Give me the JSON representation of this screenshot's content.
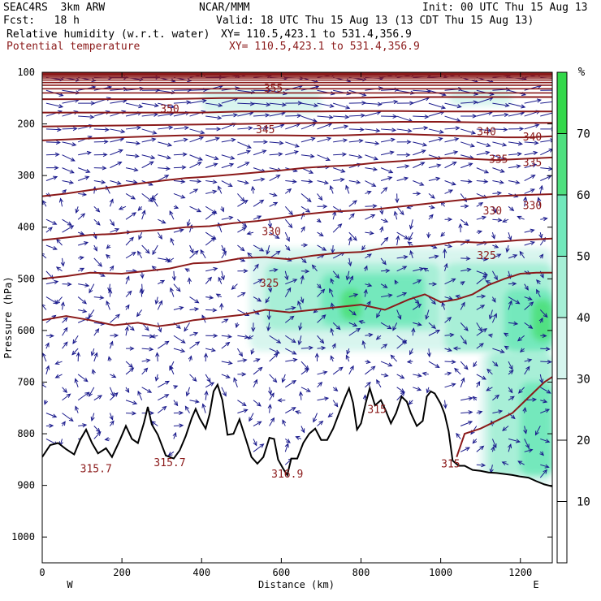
{
  "header": {
    "model": "SEAC4RS  3km ARW",
    "forecast": "Fcst:   18 h",
    "org": "NCAR/MMM",
    "init": "Init: 00 UTC Thu 15 Aug 13",
    "valid": "Valid: 18 UTC Thu 15 Aug 13 (13 CDT Thu 15 Aug 13)",
    "field1_name": "Relative humidity (w.r.t. water)",
    "field1_xy": "XY= 110.5,423.1 to 531.4,356.9",
    "field2_name": "Potential temperature",
    "field2_xy": "XY= 110.5,423.1 to 531.4,356.9"
  },
  "colors": {
    "theta": "#8b1a1a",
    "wind": "#1a1a8c",
    "terrain": "#000000",
    "rh_levels": [
      "#ffffff",
      "#ffffff",
      "#ffffff",
      "#d6f5ee",
      "#a6efd6",
      "#72e8bb",
      "#4fe07f",
      "#33d84a"
    ]
  },
  "chart_data": {
    "type": "cross-section",
    "xlabel": "Distance (km)",
    "ylabel": "Pressure (hPa)",
    "xlim": [
      0,
      1280
    ],
    "ylim": [
      1050,
      100
    ],
    "x_ticks": [
      0,
      200,
      400,
      600,
      800,
      1000,
      1200
    ],
    "y_ticks": [
      100,
      200,
      300,
      400,
      500,
      600,
      700,
      800,
      900,
      1000
    ],
    "x_end_labels": {
      "left": "W",
      "right": "E"
    },
    "colorbar": {
      "unit": "%",
      "ticks": [
        10,
        20,
        30,
        40,
        50,
        60,
        70
      ],
      "range": [
        0,
        80
      ]
    },
    "theta_contours": [
      {
        "value": 315,
        "label": "315"
      },
      {
        "value": 320,
        "label": ""
      },
      {
        "value": 325,
        "label": "325"
      },
      {
        "value": 330,
        "label": "330"
      },
      {
        "value": 335,
        "label": "335"
      },
      {
        "value": 340,
        "label": "340"
      },
      {
        "value": 345,
        "label": "345"
      },
      {
        "value": 350,
        "label": "350"
      },
      {
        "value": 355,
        "label": "355"
      }
    ],
    "contour_labels": [
      {
        "text": "350",
        "x": 320,
        "p": 178
      },
      {
        "text": "355",
        "x": 580,
        "p": 138
      },
      {
        "text": "345",
        "x": 560,
        "p": 218
      },
      {
        "text": "340",
        "x": 1115,
        "p": 222
      },
      {
        "text": "340",
        "x": 1230,
        "p": 232
      },
      {
        "text": "335",
        "x": 1145,
        "p": 275
      },
      {
        "text": "335",
        "x": 1230,
        "p": 282
      },
      {
        "text": "330",
        "x": 1130,
        "p": 375
      },
      {
        "text": "330",
        "x": 1230,
        "p": 365
      },
      {
        "text": "330",
        "x": 575,
        "p": 415
      },
      {
        "text": "325",
        "x": 1115,
        "p": 462
      },
      {
        "text": "325",
        "x": 570,
        "p": 515
      },
      {
        "text": "315",
        "x": 840,
        "p": 760
      },
      {
        "text": "315",
        "x": 1025,
        "p": 865
      },
      {
        "text": "315.7",
        "x": 135,
        "p": 875
      },
      {
        "text": "315.7",
        "x": 320,
        "p": 863
      },
      {
        "text": "316.9",
        "x": 615,
        "p": 885
      }
    ],
    "terrain_surface_hpa": [
      [
        0,
        845
      ],
      [
        20,
        822
      ],
      [
        40,
        818
      ],
      [
        60,
        830
      ],
      [
        80,
        840
      ],
      [
        95,
        812
      ],
      [
        110,
        792
      ],
      [
        125,
        818
      ],
      [
        140,
        838
      ],
      [
        160,
        828
      ],
      [
        175,
        845
      ],
      [
        195,
        812
      ],
      [
        210,
        785
      ],
      [
        225,
        810
      ],
      [
        240,
        818
      ],
      [
        255,
        780
      ],
      [
        265,
        748
      ],
      [
        275,
        782
      ],
      [
        290,
        802
      ],
      [
        310,
        842
      ],
      [
        330,
        848
      ],
      [
        345,
        832
      ],
      [
        360,
        805
      ],
      [
        375,
        770
      ],
      [
        385,
        752
      ],
      [
        395,
        770
      ],
      [
        410,
        790
      ],
      [
        420,
        762
      ],
      [
        430,
        718
      ],
      [
        440,
        705
      ],
      [
        452,
        735
      ],
      [
        465,
        802
      ],
      [
        480,
        800
      ],
      [
        495,
        772
      ],
      [
        510,
        808
      ],
      [
        525,
        845
      ],
      [
        540,
        858
      ],
      [
        555,
        845
      ],
      [
        570,
        808
      ],
      [
        582,
        810
      ],
      [
        592,
        850
      ],
      [
        605,
        868
      ],
      [
        615,
        880
      ],
      [
        625,
        848
      ],
      [
        640,
        848
      ],
      [
        655,
        818
      ],
      [
        670,
        800
      ],
      [
        685,
        790
      ],
      [
        700,
        812
      ],
      [
        715,
        812
      ],
      [
        730,
        790
      ],
      [
        745,
        760
      ],
      [
        760,
        730
      ],
      [
        770,
        712
      ],
      [
        780,
        740
      ],
      [
        790,
        792
      ],
      [
        800,
        780
      ],
      [
        812,
        740
      ],
      [
        822,
        712
      ],
      [
        835,
        745
      ],
      [
        850,
        735
      ],
      [
        862,
        755
      ],
      [
        875,
        780
      ],
      [
        888,
        760
      ],
      [
        902,
        728
      ],
      [
        915,
        738
      ],
      [
        925,
        760
      ],
      [
        940,
        785
      ],
      [
        955,
        775
      ],
      [
        965,
        728
      ],
      [
        975,
        718
      ],
      [
        985,
        722
      ],
      [
        1000,
        742
      ],
      [
        1010,
        762
      ],
      [
        1020,
        795
      ],
      [
        1030,
        852
      ],
      [
        1045,
        862
      ],
      [
        1060,
        862
      ],
      [
        1080,
        870
      ],
      [
        1100,
        872
      ],
      [
        1120,
        875
      ],
      [
        1140,
        876
      ],
      [
        1160,
        878
      ],
      [
        1180,
        880
      ],
      [
        1200,
        883
      ],
      [
        1220,
        885
      ],
      [
        1240,
        892
      ],
      [
        1260,
        898
      ],
      [
        1280,
        902
      ]
    ],
    "theta_lines": [
      {
        "value": 320,
        "points": [
          [
            0,
            580
          ],
          [
            60,
            572
          ],
          [
            120,
            580
          ],
          [
            180,
            590
          ],
          [
            240,
            585
          ],
          [
            290,
            592
          ],
          [
            330,
            588
          ],
          [
            380,
            580
          ],
          [
            440,
            575
          ],
          [
            500,
            570
          ],
          [
            560,
            560
          ],
          [
            620,
            565
          ],
          [
            680,
            560
          ],
          [
            740,
            555
          ],
          [
            800,
            550
          ],
          [
            860,
            560
          ],
          [
            920,
            540
          ],
          [
            960,
            530
          ],
          [
            1000,
            545
          ],
          [
            1040,
            540
          ],
          [
            1080,
            530
          ],
          [
            1120,
            512
          ],
          [
            1160,
            500
          ],
          [
            1200,
            490
          ],
          [
            1240,
            488
          ],
          [
            1280,
            488
          ]
        ]
      },
      {
        "value": 325,
        "points": [
          [
            0,
            500
          ],
          [
            60,
            495
          ],
          [
            120,
            488
          ],
          [
            200,
            490
          ],
          [
            260,
            485
          ],
          [
            320,
            480
          ],
          [
            380,
            470
          ],
          [
            440,
            468
          ],
          [
            500,
            460
          ],
          [
            560,
            458
          ],
          [
            620,
            462
          ],
          [
            680,
            455
          ],
          [
            740,
            450
          ],
          [
            800,
            448
          ],
          [
            860,
            440
          ],
          [
            920,
            438
          ],
          [
            980,
            435
          ],
          [
            1040,
            428
          ],
          [
            1100,
            430
          ],
          [
            1150,
            428
          ],
          [
            1200,
            425
          ],
          [
            1280,
            422
          ]
        ]
      },
      {
        "value": 330,
        "points": [
          [
            0,
            425
          ],
          [
            60,
            420
          ],
          [
            120,
            415
          ],
          [
            180,
            413
          ],
          [
            240,
            408
          ],
          [
            300,
            405
          ],
          [
            360,
            400
          ],
          [
            420,
            398
          ],
          [
            480,
            392
          ],
          [
            540,
            388
          ],
          [
            600,
            382
          ],
          [
            660,
            375
          ],
          [
            720,
            370
          ],
          [
            780,
            368
          ],
          [
            840,
            365
          ],
          [
            900,
            360
          ],
          [
            960,
            355
          ],
          [
            1020,
            350
          ],
          [
            1080,
            345
          ],
          [
            1140,
            340
          ],
          [
            1200,
            338
          ],
          [
            1280,
            336
          ]
        ]
      },
      {
        "value": 335,
        "points": [
          [
            0,
            340
          ],
          [
            60,
            335
          ],
          [
            120,
            328
          ],
          [
            180,
            322
          ],
          [
            240,
            316
          ],
          [
            300,
            310
          ],
          [
            360,
            305
          ],
          [
            420,
            302
          ],
          [
            480,
            298
          ],
          [
            540,
            294
          ],
          [
            600,
            290
          ],
          [
            660,
            285
          ],
          [
            720,
            282
          ],
          [
            780,
            280
          ],
          [
            840,
            275
          ],
          [
            900,
            272
          ],
          [
            960,
            268
          ],
          [
            1020,
            266
          ],
          [
            1080,
            268
          ],
          [
            1140,
            270
          ],
          [
            1200,
            268
          ],
          [
            1280,
            265
          ]
        ]
      },
      {
        "value": 340,
        "points": [
          [
            0,
            232
          ],
          [
            60,
            230
          ],
          [
            120,
            228
          ],
          [
            200,
            226
          ],
          [
            280,
            224
          ],
          [
            360,
            222
          ],
          [
            440,
            222
          ],
          [
            520,
            222
          ],
          [
            600,
            222
          ],
          [
            680,
            223
          ],
          [
            760,
            222
          ],
          [
            840,
            220
          ],
          [
            920,
            220
          ],
          [
            1000,
            222
          ],
          [
            1080,
            224
          ],
          [
            1160,
            226
          ],
          [
            1220,
            226
          ],
          [
            1280,
            224
          ]
        ]
      },
      {
        "value": 345,
        "points": [
          [
            0,
            205
          ],
          [
            100,
            204
          ],
          [
            200,
            203
          ],
          [
            300,
            202
          ],
          [
            400,
            201
          ],
          [
            500,
            200
          ],
          [
            600,
            199
          ],
          [
            700,
            198
          ],
          [
            800,
            197
          ],
          [
            900,
            196
          ],
          [
            1000,
            196
          ],
          [
            1100,
            197
          ],
          [
            1200,
            198
          ],
          [
            1280,
            198
          ]
        ]
      },
      {
        "value": 350,
        "points": [
          [
            0,
            178
          ],
          [
            100,
            178
          ],
          [
            200,
            178
          ],
          [
            300,
            178
          ],
          [
            400,
            178
          ],
          [
            500,
            176
          ],
          [
            600,
            176
          ],
          [
            700,
            176
          ],
          [
            800,
            175
          ],
          [
            900,
            175
          ],
          [
            1000,
            176
          ],
          [
            1100,
            176
          ],
          [
            1200,
            176
          ],
          [
            1280,
            176
          ]
        ]
      },
      {
        "value": 355,
        "points": [
          [
            0,
            152
          ],
          [
            150,
            152
          ],
          [
            300,
            152
          ],
          [
            450,
            150
          ],
          [
            600,
            150
          ],
          [
            750,
            150
          ],
          [
            900,
            148
          ],
          [
            1050,
            148
          ],
          [
            1200,
            148
          ],
          [
            1280,
            148
          ]
        ]
      }
    ],
    "upper_theta_levels_hpa": [
      140,
      132,
      125,
      120,
      115,
      111,
      108,
      105,
      103,
      102,
      101
    ]
  }
}
